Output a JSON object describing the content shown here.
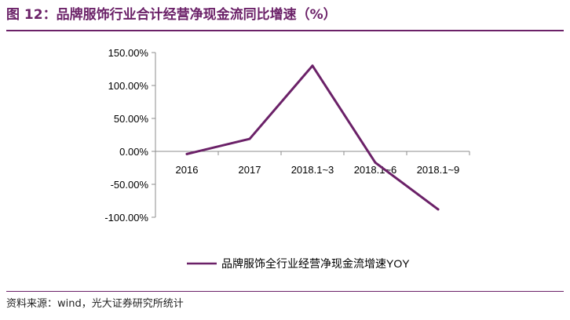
{
  "header": {
    "title": "图 12：品牌服饰行业合计经营净现金流同比增速（%）"
  },
  "footer": {
    "source": "资料来源：wind，光大证券研究所统计"
  },
  "chart_data": {
    "type": "line",
    "categories": [
      "2016",
      "2017",
      "2018.1~3",
      "2018.1~6",
      "2018.1~9"
    ],
    "series": [
      {
        "name": "品牌服饰全行业经营净现金流增速YOY",
        "values": [
          -4,
          19,
          130,
          -17,
          -88
        ],
        "color": "#6b2168"
      }
    ],
    "yticks": [
      "150.00%",
      "100.00%",
      "50.00%",
      "0.00%",
      "-50.00%",
      "-100.00%"
    ],
    "ytick_values": [
      150,
      100,
      50,
      0,
      -50,
      -100
    ],
    "ylim": [
      -100,
      150
    ],
    "grid": false,
    "legend_position": "bottom"
  }
}
